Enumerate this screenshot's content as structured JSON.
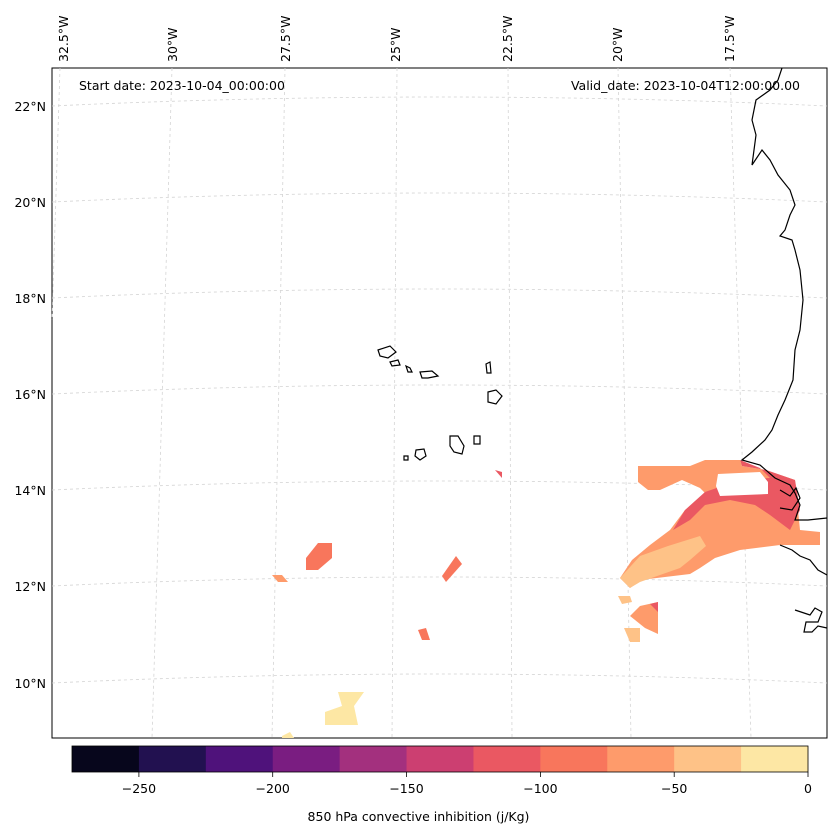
{
  "header": {
    "start_date": "Start date: 2023-10-04_00:00:00",
    "valid_date": "Valid_date: 2023-10-04T12:00:00.00"
  },
  "longitude_labels": [
    "32.5°W",
    "30°W",
    "27.5°W",
    "25°W",
    "22.5°W",
    "20°W",
    "17.5°W"
  ],
  "latitude_labels": [
    "22°N",
    "20°N",
    "18°N",
    "16°N",
    "14°N",
    "12°N",
    "10°N"
  ],
  "colorbar": {
    "label": "850 hPa convective inhibition (j/Kg)",
    "tick_labels": [
      "−250",
      "−200",
      "−150",
      "−100",
      "−50",
      "0"
    ],
    "range": [
      -275,
      0
    ],
    "colors": [
      "#07061c",
      "#221150",
      "#4f127b",
      "#7a1d81",
      "#a3307e",
      "#cc3f71",
      "#ea5862",
      "#f8765c",
      "#fe9b6b",
      "#fec287",
      "#fde7a4"
    ]
  },
  "chart_data": {
    "type": "filled-contour-map",
    "variable": "850 hPa convective inhibition",
    "units": "j/Kg",
    "levels": [
      -275,
      -250,
      -225,
      -200,
      -175,
      -150,
      -125,
      -100,
      -75,
      -50,
      -25,
      0
    ],
    "extent_lon": [
      -33,
      -16
    ],
    "extent_lat": [
      9,
      23
    ]
  }
}
